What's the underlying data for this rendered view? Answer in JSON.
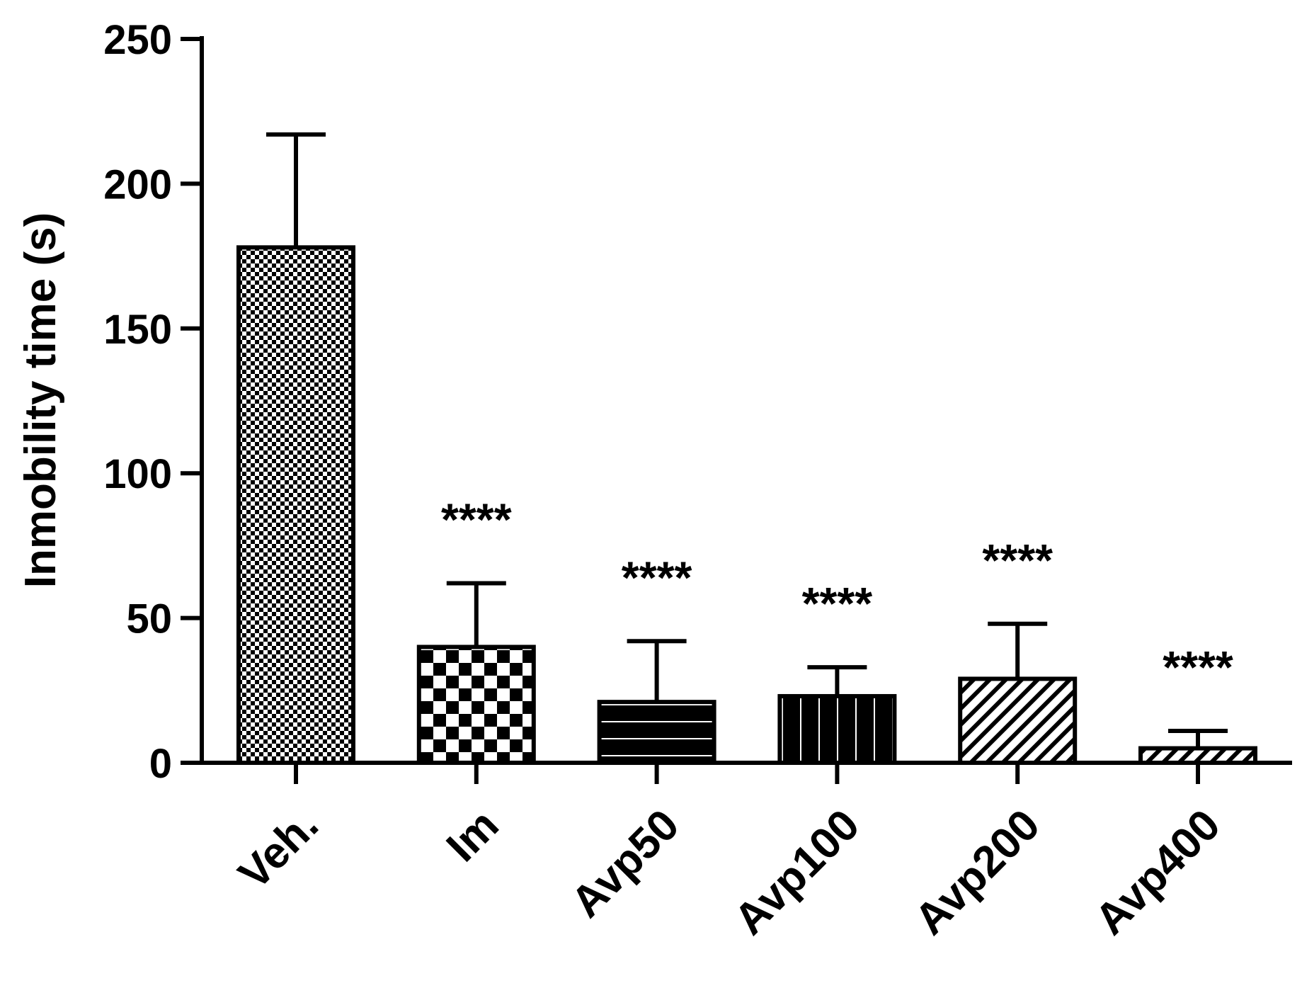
{
  "chart_data": {
    "type": "bar",
    "title": "",
    "xlabel": "",
    "ylabel": "Inmobility time (s)",
    "ylim": [
      0,
      250
    ],
    "yticks": [
      "0",
      "50",
      "100",
      "150",
      "200",
      "250"
    ],
    "grid": false,
    "legend": "none",
    "categories": [
      "Veh.",
      "Im",
      "Avp50",
      "Avp100",
      "Avp200",
      "Avp400"
    ],
    "values": [
      178,
      40,
      21,
      23,
      29,
      5
    ],
    "error_upper": [
      217,
      62,
      42,
      33,
      48,
      11
    ],
    "significance": [
      "",
      "****",
      "****",
      "****",
      "****",
      "****"
    ],
    "bar_patterns": [
      "fine-checker",
      "coarse-checker",
      "black-horizontal-lines",
      "black-vertical-lines",
      "diagonal-hatch",
      "diagonal-hatch"
    ],
    "colors": {
      "ink": "#000000",
      "background": "#ffffff"
    }
  }
}
